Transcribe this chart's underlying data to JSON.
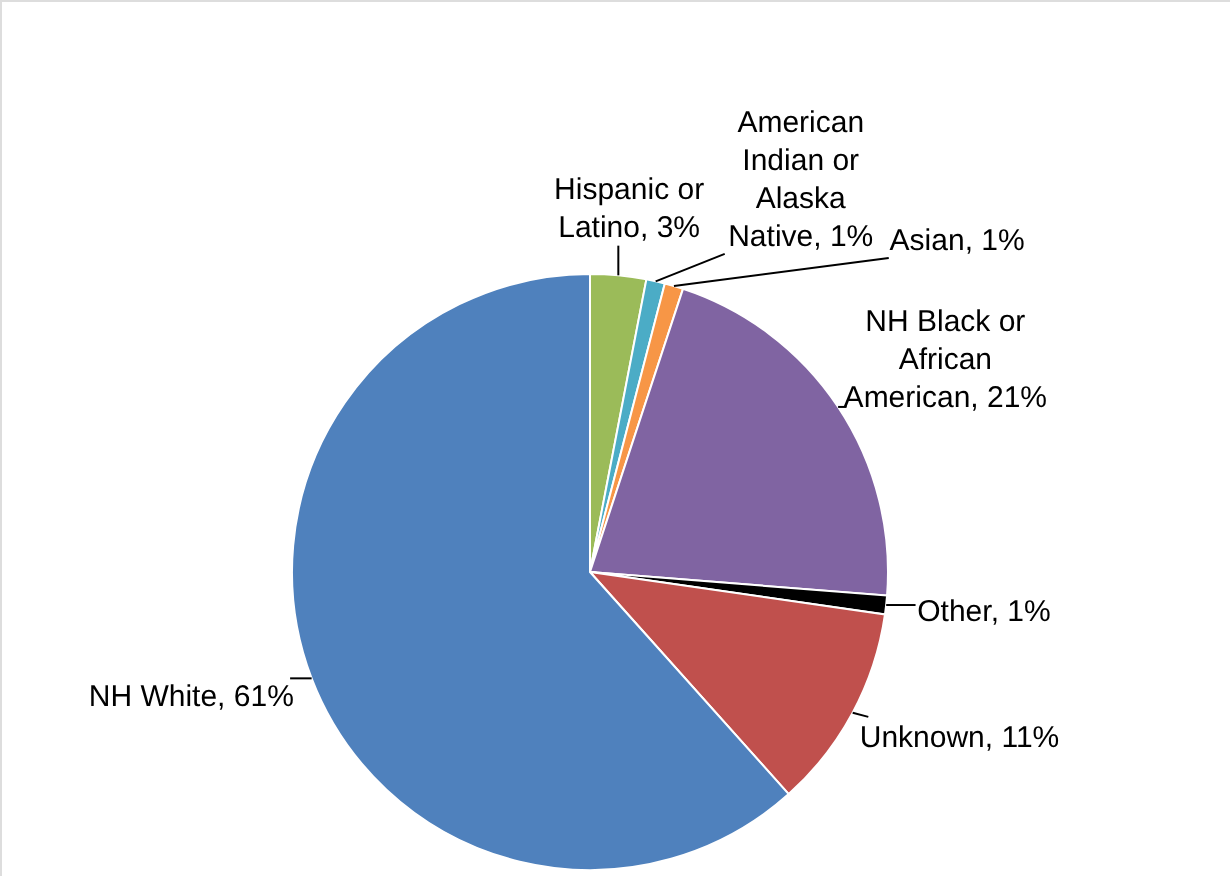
{
  "chart_data": {
    "type": "pie",
    "categories": [
      "Hispanic or Latino",
      "American Indian or Alaska Native",
      "Asian",
      "NH Black or African American",
      "Other",
      "Unknown",
      "NH White"
    ],
    "values": [
      3,
      1,
      1,
      21,
      1,
      11,
      61
    ],
    "colors": [
      "#9bbb59",
      "#4bacc6",
      "#f79646",
      "#8064a2",
      "#000000",
      "#c0504d",
      "#4f81bd"
    ],
    "value_labels": [
      "3%",
      "1%",
      "1%",
      "21%",
      "1%",
      "11%",
      "61%"
    ]
  }
}
